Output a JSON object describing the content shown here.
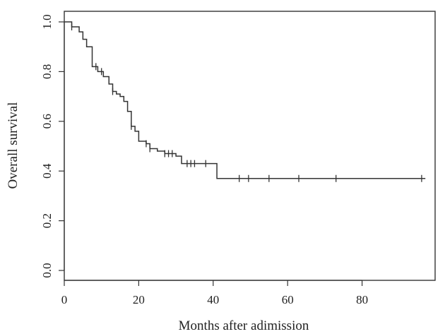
{
  "chart_data": {
    "type": "line",
    "title": "",
    "xlabel": "Months after adimission",
    "ylabel": "Overall survival",
    "xlim": [
      0,
      97
    ],
    "ylim": [
      0,
      1.0
    ],
    "x_ticks": [
      0,
      20,
      40,
      60,
      80
    ],
    "y_ticks": [
      0.0,
      0.2,
      0.4,
      0.6,
      0.8,
      1.0
    ],
    "x_tick_labels": [
      "0",
      "20",
      "40",
      "60",
      "80"
    ],
    "y_tick_labels": [
      "0.0",
      "0.2",
      "0.4",
      "0.6",
      "0.8",
      "1.0"
    ],
    "grid": false,
    "legend": "none",
    "series": [
      {
        "style": "step",
        "x": [
          0,
          2,
          4,
          5,
          6,
          7.5,
          9,
          10.5,
          12,
          13,
          14,
          15,
          16,
          17,
          18,
          19,
          20,
          22,
          23,
          25,
          27,
          30,
          31.5,
          41
        ],
        "y": [
          1.0,
          0.98,
          0.96,
          0.93,
          0.9,
          0.82,
          0.8,
          0.78,
          0.75,
          0.72,
          0.71,
          0.7,
          0.68,
          0.64,
          0.58,
          0.56,
          0.52,
          0.51,
          0.49,
          0.48,
          0.47,
          0.46,
          0.43,
          0.37
        ],
        "x_end": 97,
        "censored": [
          2,
          8.5,
          10,
          13,
          18,
          22,
          23,
          27,
          28,
          29,
          33,
          34,
          35,
          38,
          47,
          49.5,
          55,
          63,
          73,
          96
        ]
      }
    ]
  }
}
